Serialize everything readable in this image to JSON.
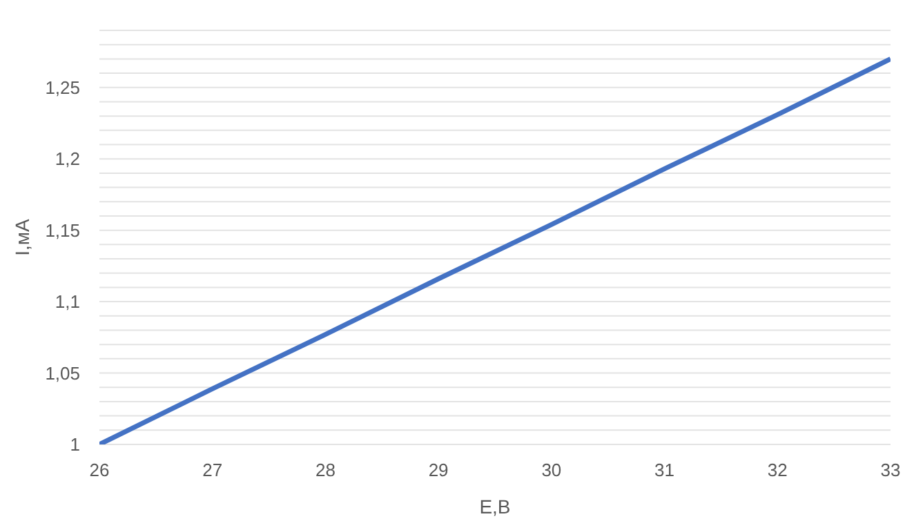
{
  "chart_data": {
    "type": "line",
    "xlabel": "E,B",
    "ylabel": "I,мА",
    "x": [
      26,
      27,
      28,
      29,
      30,
      31,
      32,
      33
    ],
    "series": [
      {
        "color": "#4472c4",
        "values": [
          1,
          1.039,
          1.077,
          1.116,
          1.154,
          1.193,
          1.231,
          1.27
        ]
      }
    ],
    "xlim": [
      26,
      33
    ],
    "xticks": [
      26,
      27,
      28,
      29,
      30,
      31,
      32,
      33
    ],
    "ylim": [
      1,
      1.29
    ],
    "yticks": [
      {
        "value": 1,
        "label": "1"
      },
      {
        "value": 1.01,
        "label": null
      },
      {
        "value": 1.02,
        "label": null
      },
      {
        "value": 1.03,
        "label": null
      },
      {
        "value": 1.04,
        "label": null
      },
      {
        "value": 1.05,
        "label": "1,05"
      },
      {
        "value": 1.06,
        "label": null
      },
      {
        "value": 1.07,
        "label": null
      },
      {
        "value": 1.08,
        "label": null
      },
      {
        "value": 1.09,
        "label": null
      },
      {
        "value": 1.1,
        "label": "1,1"
      },
      {
        "value": 1.11,
        "label": null
      },
      {
        "value": 1.12,
        "label": null
      },
      {
        "value": 1.13,
        "label": null
      },
      {
        "value": 1.14,
        "label": null
      },
      {
        "value": 1.15,
        "label": "1,15"
      },
      {
        "value": 1.16,
        "label": null
      },
      {
        "value": 1.17,
        "label": null
      },
      {
        "value": 1.18,
        "label": null
      },
      {
        "value": 1.19,
        "label": null
      },
      {
        "value": 1.2,
        "label": "1,2"
      },
      {
        "value": 1.21,
        "label": null
      },
      {
        "value": 1.22,
        "label": null
      },
      {
        "value": 1.23,
        "label": null
      },
      {
        "value": 1.24,
        "label": null
      },
      {
        "value": 1.25,
        "label": "1,25"
      },
      {
        "value": 1.26,
        "label": null
      },
      {
        "value": 1.27,
        "label": null
      },
      {
        "value": 1.28,
        "label": null
      },
      {
        "value": 1.29,
        "label": null
      }
    ],
    "grid": "y",
    "legend": false,
    "marker": "none",
    "line_style": "solid"
  }
}
